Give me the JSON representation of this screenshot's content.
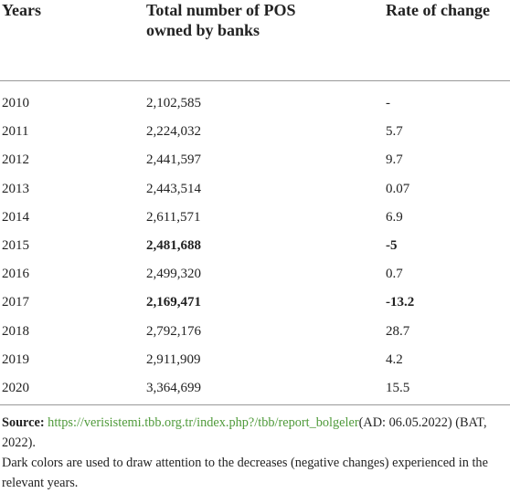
{
  "header": {
    "columns": [
      "Years",
      "Total number of POS owned by banks",
      "Rate of change"
    ]
  },
  "table": {
    "rows": [
      [
        "2010",
        "2,102,585",
        "-"
      ],
      [
        "2011",
        "2,224,032",
        "5.7"
      ],
      [
        "2012",
        "2,441,597",
        "9.7"
      ],
      [
        "2013",
        "2,443,514",
        "0.07"
      ],
      [
        "2014",
        "2,611,571",
        "6.9"
      ],
      [
        "2015",
        "2,481,688",
        "-5"
      ],
      [
        "2016",
        "2,499,320",
        "0.7"
      ],
      [
        "2017",
        "2,169,471",
        "-13.2"
      ],
      [
        "2018",
        "2,792,176",
        "28.7"
      ],
      [
        "2019",
        "2,911,909",
        "4.2"
      ],
      [
        "2020",
        "3,364,699",
        "15.5"
      ]
    ],
    "bold_rows": [
      5,
      7
    ]
  },
  "footnote": {
    "source_label": "Source:",
    "link": "https://verisistemi.tbb.org.tr/index.php?/tbb/report_bolgeler",
    "source_rest": "(AD: 06.05.2022) (BAT, 2022).",
    "note": "Dark colors are used to draw attention to the decreases (negative changes) experienced in the relevant years."
  }
}
